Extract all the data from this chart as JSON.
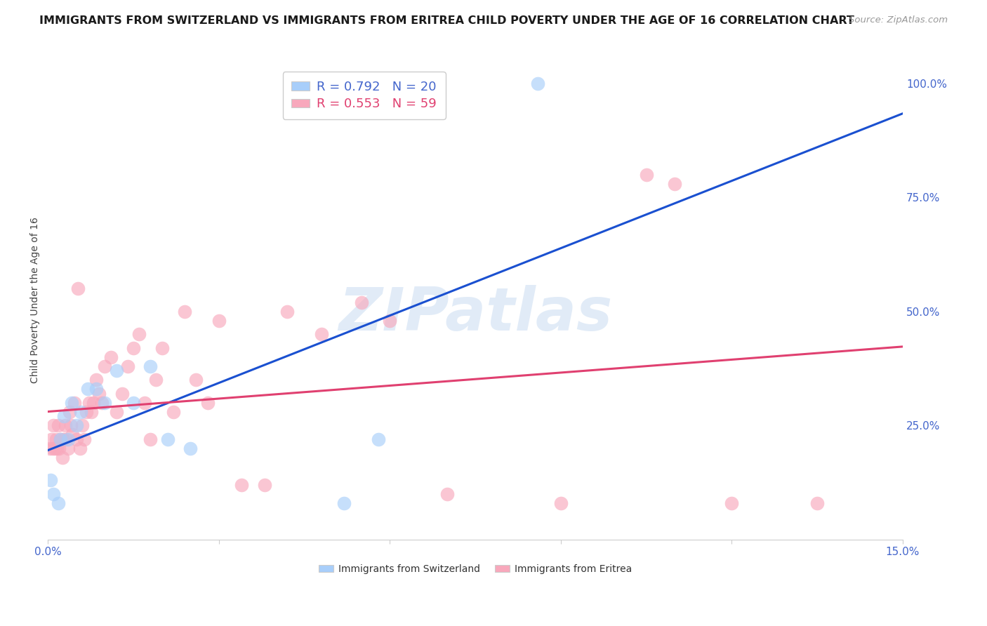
{
  "title": "IMMIGRANTS FROM SWITZERLAND VS IMMIGRANTS FROM ERITREA CHILD POVERTY UNDER THE AGE OF 16 CORRELATION CHART",
  "source": "Source: ZipAtlas.com",
  "ylabel": "Child Poverty Under the Age of 16",
  "xlim": [
    0.0,
    15.0
  ],
  "ylim": [
    0.0,
    105.0
  ],
  "color_swiss": "#A8CEFA",
  "color_eritrea": "#F8A8BC",
  "line_color_swiss": "#1A50D0",
  "line_color_eritrea": "#E04070",
  "R_swiss": 0.792,
  "N_swiss": 20,
  "R_eritrea": 0.553,
  "N_eritrea": 59,
  "swiss_x": [
    0.05,
    0.1,
    0.18,
    0.22,
    0.28,
    0.35,
    0.42,
    0.5,
    0.58,
    0.7,
    0.85,
    1.0,
    1.2,
    1.5,
    1.8,
    2.1,
    2.5,
    5.2,
    5.8,
    8.6
  ],
  "swiss_y": [
    13,
    10,
    8,
    22,
    27,
    22,
    30,
    25,
    28,
    33,
    33,
    30,
    37,
    30,
    38,
    22,
    20,
    8,
    22,
    100
  ],
  "eritrea_x": [
    0.04,
    0.06,
    0.08,
    0.1,
    0.12,
    0.14,
    0.16,
    0.18,
    0.2,
    0.22,
    0.25,
    0.27,
    0.3,
    0.32,
    0.35,
    0.38,
    0.4,
    0.43,
    0.46,
    0.5,
    0.53,
    0.56,
    0.6,
    0.64,
    0.68,
    0.72,
    0.76,
    0.8,
    0.85,
    0.9,
    0.95,
    1.0,
    1.1,
    1.2,
    1.3,
    1.4,
    1.5,
    1.6,
    1.7,
    1.8,
    1.9,
    2.0,
    2.2,
    2.4,
    2.6,
    2.8,
    3.0,
    3.4,
    3.8,
    4.2,
    4.8,
    5.5,
    6.0,
    7.0,
    9.0,
    10.5,
    11.0,
    12.0,
    13.5
  ],
  "eritrea_y": [
    20,
    22,
    20,
    25,
    20,
    22,
    20,
    25,
    20,
    22,
    18,
    22,
    25,
    22,
    20,
    28,
    25,
    23,
    30,
    22,
    55,
    20,
    25,
    22,
    28,
    30,
    28,
    30,
    35,
    32,
    30,
    38,
    40,
    28,
    32,
    38,
    42,
    45,
    30,
    22,
    35,
    42,
    28,
    50,
    35,
    30,
    48,
    12,
    12,
    50,
    45,
    52,
    48,
    10,
    8,
    80,
    78,
    8,
    8
  ],
  "watermark": "ZIPatlas",
  "background_color": "#FFFFFF",
  "grid_color": "#DDDDDD",
  "axis_color": "#4466CC",
  "title_fontsize": 11.5,
  "label_fontsize": 10,
  "tick_fontsize": 11,
  "legend_fontsize": 13
}
